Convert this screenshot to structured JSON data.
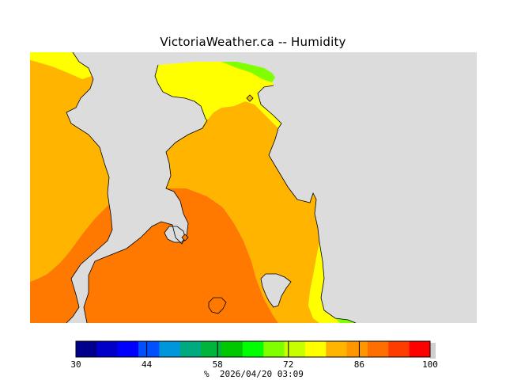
{
  "map": {
    "title": "VictoriaWeather.ca -- Humidity"
  },
  "legend": {
    "unit": "%",
    "timestamp": "2026/04/20 03:09",
    "min": 30,
    "max": 100,
    "ticks": [
      {
        "value": 30,
        "label": "30"
      },
      {
        "value": 44,
        "label": "44"
      },
      {
        "value": 58,
        "label": "58"
      },
      {
        "value": 72,
        "label": "72"
      },
      {
        "value": 86,
        "label": "86"
      },
      {
        "value": 100,
        "label": "100"
      }
    ],
    "colors": [
      "#00008c",
      "#0000c8",
      "#0000ff",
      "#0050ff",
      "#0096dc",
      "#00aa80",
      "#00b43c",
      "#00c800",
      "#00ff00",
      "#80ff00",
      "#c8ff00",
      "#ffff00",
      "#ffb400",
      "#ff9600",
      "#ff6e00",
      "#ff3c00",
      "#ff0000"
    ]
  },
  "zones": {
    "land_color": "#dcdcdc",
    "humidity_80_color": "#ffff00",
    "humidity_85_color": "#ffb400",
    "humidity_90_color": "#ff7800",
    "humidity_75_color": "#80ff00"
  }
}
